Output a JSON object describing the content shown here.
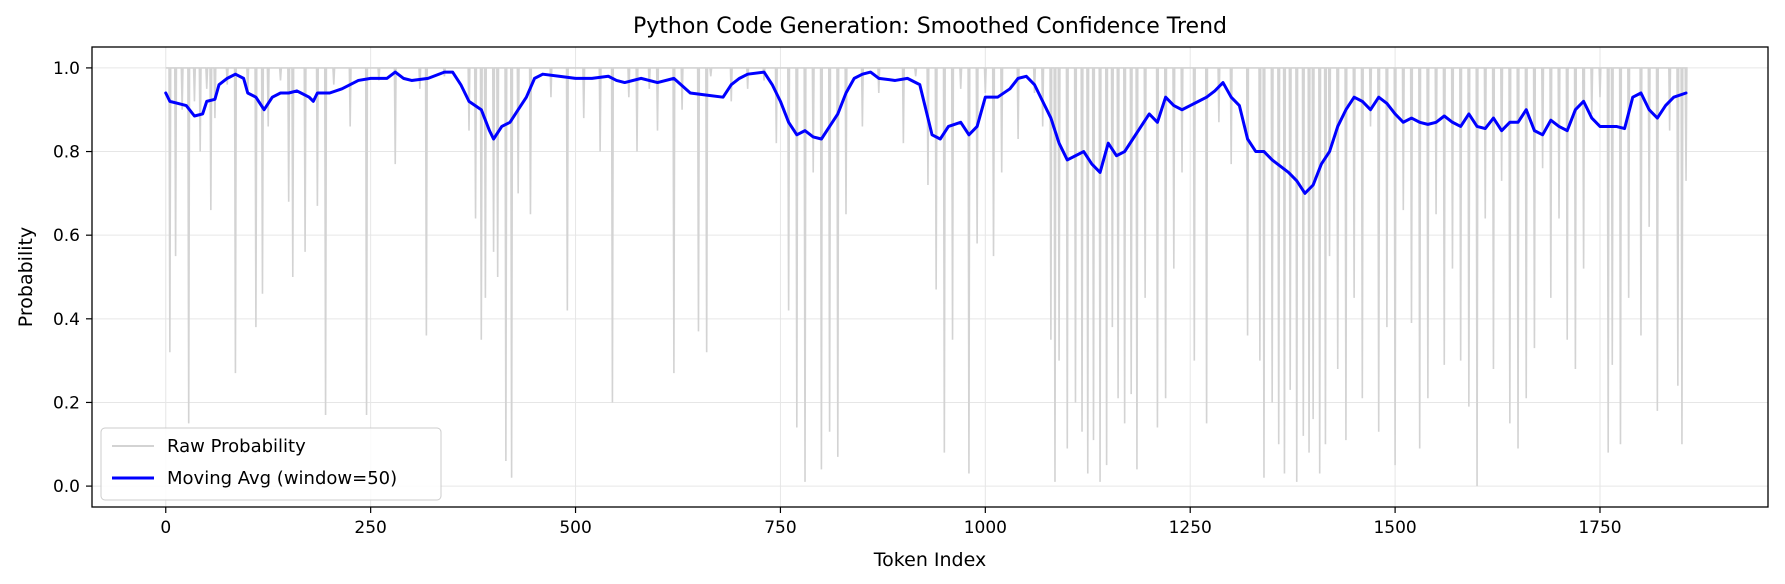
{
  "chart_data": {
    "type": "line",
    "title": "Python Code Generation: Smoothed Confidence Trend",
    "xlabel": "Token Index",
    "ylabel": "Probability",
    "xlim": [
      -90,
      1955
    ],
    "ylim": [
      -0.05,
      1.05
    ],
    "x_ticks": [
      0,
      250,
      500,
      750,
      1000,
      1250,
      1500,
      1750
    ],
    "y_ticks": [
      0.0,
      0.2,
      0.4,
      0.6,
      0.8,
      1.0
    ],
    "x_tick_labels": [
      "0",
      "250",
      "500",
      "750",
      "1000",
      "1250",
      "1500",
      "1750"
    ],
    "y_tick_labels": [
      "0.0",
      "0.2",
      "0.4",
      "0.6",
      "0.8",
      "1.0"
    ],
    "grid": true,
    "legend_position": "lower-left",
    "colors": {
      "raw": "#d3d3d3",
      "smoothed": "#0000ff"
    },
    "raw_probability": {
      "name": "Raw Probability",
      "baseline": 1.0,
      "x_range": [
        0,
        1855
      ],
      "dips": [
        [
          5,
          0.32
        ],
        [
          12,
          0.55
        ],
        [
          20,
          0.9
        ],
        [
          28,
          0.15
        ],
        [
          35,
          0.92
        ],
        [
          42,
          0.8
        ],
        [
          50,
          0.95
        ],
        [
          55,
          0.66
        ],
        [
          60,
          0.88
        ],
        [
          75,
          0.96
        ],
        [
          85,
          0.27
        ],
        [
          100,
          0.94
        ],
        [
          110,
          0.38
        ],
        [
          118,
          0.46
        ],
        [
          125,
          0.86
        ],
        [
          140,
          0.97
        ],
        [
          150,
          0.68
        ],
        [
          155,
          0.5
        ],
        [
          170,
          0.56
        ],
        [
          185,
          0.67
        ],
        [
          195,
          0.17
        ],
        [
          205,
          0.96
        ],
        [
          225,
          0.86
        ],
        [
          245,
          0.17
        ],
        [
          260,
          0.97
        ],
        [
          280,
          0.77
        ],
        [
          310,
          0.95
        ],
        [
          318,
          0.36
        ],
        [
          340,
          0.98
        ],
        [
          370,
          0.85
        ],
        [
          378,
          0.64
        ],
        [
          385,
          0.35
        ],
        [
          390,
          0.45
        ],
        [
          400,
          0.56
        ],
        [
          405,
          0.5
        ],
        [
          415,
          0.06
        ],
        [
          422,
          0.02
        ],
        [
          430,
          0.7
        ],
        [
          445,
          0.65
        ],
        [
          470,
          0.93
        ],
        [
          490,
          0.42
        ],
        [
          510,
          0.88
        ],
        [
          530,
          0.8
        ],
        [
          545,
          0.2
        ],
        [
          565,
          0.93
        ],
        [
          575,
          0.8
        ],
        [
          590,
          0.95
        ],
        [
          600,
          0.85
        ],
        [
          620,
          0.27
        ],
        [
          630,
          0.9
        ],
        [
          650,
          0.37
        ],
        [
          660,
          0.32
        ],
        [
          665,
          0.98
        ],
        [
          690,
          0.92
        ],
        [
          710,
          0.95
        ],
        [
          730,
          0.97
        ],
        [
          745,
          0.82
        ],
        [
          760,
          0.42
        ],
        [
          770,
          0.14
        ],
        [
          780,
          0.01
        ],
        [
          790,
          0.75
        ],
        [
          800,
          0.04
        ],
        [
          810,
          0.13
        ],
        [
          820,
          0.07
        ],
        [
          830,
          0.65
        ],
        [
          850,
          0.86
        ],
        [
          870,
          0.94
        ],
        [
          900,
          0.82
        ],
        [
          915,
          0.98
        ],
        [
          930,
          0.72
        ],
        [
          940,
          0.47
        ],
        [
          950,
          0.08
        ],
        [
          960,
          0.35
        ],
        [
          970,
          0.95
        ],
        [
          980,
          0.03
        ],
        [
          990,
          0.58
        ],
        [
          1000,
          0.94
        ],
        [
          1010,
          0.55
        ],
        [
          1020,
          0.75
        ],
        [
          1040,
          0.83
        ],
        [
          1060,
          0.94
        ],
        [
          1070,
          0.86
        ],
        [
          1080,
          0.35
        ],
        [
          1085,
          0.01
        ],
        [
          1090,
          0.3
        ],
        [
          1100,
          0.09
        ],
        [
          1110,
          0.2
        ],
        [
          1118,
          0.13
        ],
        [
          1125,
          0.03
        ],
        [
          1132,
          0.11
        ],
        [
          1140,
          0.01
        ],
        [
          1148,
          0.05
        ],
        [
          1155,
          0.38
        ],
        [
          1162,
          0.21
        ],
        [
          1170,
          0.15
        ],
        [
          1178,
          0.22
        ],
        [
          1185,
          0.04
        ],
        [
          1195,
          0.45
        ],
        [
          1210,
          0.14
        ],
        [
          1220,
          0.21
        ],
        [
          1230,
          0.52
        ],
        [
          1240,
          0.75
        ],
        [
          1255,
          0.3
        ],
        [
          1270,
          0.15
        ],
        [
          1285,
          0.87
        ],
        [
          1300,
          0.77
        ],
        [
          1320,
          0.36
        ],
        [
          1335,
          0.3
        ],
        [
          1340,
          0.02
        ],
        [
          1350,
          0.2
        ],
        [
          1358,
          0.1
        ],
        [
          1365,
          0.03
        ],
        [
          1372,
          0.23
        ],
        [
          1380,
          0.01
        ],
        [
          1388,
          0.12
        ],
        [
          1395,
          0.08
        ],
        [
          1400,
          0.16
        ],
        [
          1408,
          0.03
        ],
        [
          1415,
          0.1
        ],
        [
          1420,
          0.55
        ],
        [
          1430,
          0.28
        ],
        [
          1440,
          0.11
        ],
        [
          1450,
          0.45
        ],
        [
          1460,
          0.21
        ],
        [
          1470,
          0.86
        ],
        [
          1480,
          0.13
        ],
        [
          1490,
          0.38
        ],
        [
          1500,
          0.05
        ],
        [
          1510,
          0.66
        ],
        [
          1520,
          0.39
        ],
        [
          1530,
          0.09
        ],
        [
          1540,
          0.21
        ],
        [
          1550,
          0.65
        ],
        [
          1560,
          0.29
        ],
        [
          1570,
          0.52
        ],
        [
          1580,
          0.3
        ],
        [
          1590,
          0.19
        ],
        [
          1600,
          0.0
        ],
        [
          1610,
          0.64
        ],
        [
          1620,
          0.28
        ],
        [
          1630,
          0.73
        ],
        [
          1640,
          0.15
        ],
        [
          1650,
          0.09
        ],
        [
          1660,
          0.21
        ],
        [
          1670,
          0.33
        ],
        [
          1680,
          0.76
        ],
        [
          1690,
          0.45
        ],
        [
          1700,
          0.64
        ],
        [
          1710,
          0.35
        ],
        [
          1720,
          0.28
        ],
        [
          1730,
          0.52
        ],
        [
          1740,
          0.89
        ],
        [
          1750,
          0.93
        ],
        [
          1760,
          0.08
        ],
        [
          1765,
          0.29
        ],
        [
          1775,
          0.1
        ],
        [
          1785,
          0.45
        ],
        [
          1800,
          0.36
        ],
        [
          1810,
          0.62
        ],
        [
          1820,
          0.18
        ],
        [
          1835,
          0.85
        ],
        [
          1845,
          0.24
        ],
        [
          1850,
          0.1
        ],
        [
          1855,
          0.73
        ]
      ]
    },
    "moving_average": {
      "name": "Moving Avg (window=50)",
      "points": [
        [
          0,
          0.94
        ],
        [
          5,
          0.92
        ],
        [
          15,
          0.915
        ],
        [
          25,
          0.91
        ],
        [
          35,
          0.885
        ],
        [
          45,
          0.89
        ],
        [
          50,
          0.92
        ],
        [
          60,
          0.925
        ],
        [
          65,
          0.96
        ],
        [
          75,
          0.975
        ],
        [
          85,
          0.985
        ],
        [
          95,
          0.975
        ],
        [
          100,
          0.94
        ],
        [
          110,
          0.93
        ],
        [
          120,
          0.9
        ],
        [
          130,
          0.93
        ],
        [
          140,
          0.94
        ],
        [
          150,
          0.94
        ],
        [
          160,
          0.945
        ],
        [
          165,
          0.94
        ],
        [
          175,
          0.93
        ],
        [
          180,
          0.92
        ],
        [
          185,
          0.94
        ],
        [
          200,
          0.94
        ],
        [
          215,
          0.95
        ],
        [
          235,
          0.97
        ],
        [
          250,
          0.975
        ],
        [
          270,
          0.975
        ],
        [
          280,
          0.99
        ],
        [
          290,
          0.975
        ],
        [
          300,
          0.97
        ],
        [
          320,
          0.975
        ],
        [
          340,
          0.99
        ],
        [
          350,
          0.99
        ],
        [
          360,
          0.96
        ],
        [
          370,
          0.92
        ],
        [
          385,
          0.9
        ],
        [
          395,
          0.85
        ],
        [
          400,
          0.83
        ],
        [
          410,
          0.86
        ],
        [
          420,
          0.87
        ],
        [
          430,
          0.9
        ],
        [
          440,
          0.93
        ],
        [
          450,
          0.975
        ],
        [
          460,
          0.985
        ],
        [
          480,
          0.98
        ],
        [
          500,
          0.975
        ],
        [
          520,
          0.975
        ],
        [
          540,
          0.98
        ],
        [
          550,
          0.97
        ],
        [
          560,
          0.965
        ],
        [
          580,
          0.975
        ],
        [
          600,
          0.965
        ],
        [
          620,
          0.975
        ],
        [
          640,
          0.94
        ],
        [
          660,
          0.935
        ],
        [
          680,
          0.93
        ],
        [
          690,
          0.96
        ],
        [
          700,
          0.975
        ],
        [
          710,
          0.985
        ],
        [
          730,
          0.99
        ],
        [
          740,
          0.96
        ],
        [
          750,
          0.92
        ],
        [
          760,
          0.87
        ],
        [
          770,
          0.84
        ],
        [
          780,
          0.85
        ],
        [
          790,
          0.835
        ],
        [
          800,
          0.83
        ],
        [
          810,
          0.86
        ],
        [
          820,
          0.89
        ],
        [
          830,
          0.94
        ],
        [
          840,
          0.975
        ],
        [
          850,
          0.985
        ],
        [
          860,
          0.99
        ],
        [
          870,
          0.975
        ],
        [
          890,
          0.97
        ],
        [
          905,
          0.975
        ],
        [
          920,
          0.96
        ],
        [
          935,
          0.84
        ],
        [
          945,
          0.83
        ],
        [
          955,
          0.86
        ],
        [
          970,
          0.87
        ],
        [
          980,
          0.84
        ],
        [
          990,
          0.86
        ],
        [
          1000,
          0.93
        ],
        [
          1015,
          0.93
        ],
        [
          1030,
          0.95
        ],
        [
          1040,
          0.975
        ],
        [
          1050,
          0.98
        ],
        [
          1060,
          0.96
        ],
        [
          1070,
          0.92
        ],
        [
          1080,
          0.88
        ],
        [
          1090,
          0.82
        ],
        [
          1100,
          0.78
        ],
        [
          1110,
          0.79
        ],
        [
          1120,
          0.8
        ],
        [
          1130,
          0.77
        ],
        [
          1140,
          0.75
        ],
        [
          1150,
          0.82
        ],
        [
          1160,
          0.79
        ],
        [
          1170,
          0.8
        ],
        [
          1180,
          0.83
        ],
        [
          1190,
          0.86
        ],
        [
          1200,
          0.89
        ],
        [
          1210,
          0.87
        ],
        [
          1220,
          0.93
        ],
        [
          1230,
          0.91
        ],
        [
          1240,
          0.9
        ],
        [
          1250,
          0.91
        ],
        [
          1260,
          0.92
        ],
        [
          1270,
          0.93
        ],
        [
          1280,
          0.945
        ],
        [
          1290,
          0.965
        ],
        [
          1300,
          0.93
        ],
        [
          1310,
          0.91
        ],
        [
          1320,
          0.83
        ],
        [
          1330,
          0.8
        ],
        [
          1340,
          0.8
        ],
        [
          1350,
          0.78
        ],
        [
          1360,
          0.765
        ],
        [
          1370,
          0.75
        ],
        [
          1380,
          0.73
        ],
        [
          1390,
          0.7
        ],
        [
          1400,
          0.72
        ],
        [
          1410,
          0.77
        ],
        [
          1420,
          0.8
        ],
        [
          1430,
          0.86
        ],
        [
          1440,
          0.9
        ],
        [
          1450,
          0.93
        ],
        [
          1460,
          0.92
        ],
        [
          1470,
          0.9
        ],
        [
          1480,
          0.93
        ],
        [
          1490,
          0.915
        ],
        [
          1500,
          0.89
        ],
        [
          1510,
          0.87
        ],
        [
          1520,
          0.88
        ],
        [
          1530,
          0.87
        ],
        [
          1540,
          0.865
        ],
        [
          1550,
          0.87
        ],
        [
          1560,
          0.885
        ],
        [
          1570,
          0.87
        ],
        [
          1580,
          0.86
        ],
        [
          1590,
          0.89
        ],
        [
          1600,
          0.86
        ],
        [
          1610,
          0.855
        ],
        [
          1620,
          0.88
        ],
        [
          1630,
          0.85
        ],
        [
          1640,
          0.87
        ],
        [
          1650,
          0.87
        ],
        [
          1660,
          0.9
        ],
        [
          1670,
          0.85
        ],
        [
          1680,
          0.84
        ],
        [
          1690,
          0.875
        ],
        [
          1700,
          0.86
        ],
        [
          1710,
          0.85
        ],
        [
          1720,
          0.9
        ],
        [
          1730,
          0.92
        ],
        [
          1740,
          0.88
        ],
        [
          1750,
          0.86
        ],
        [
          1760,
          0.86
        ],
        [
          1770,
          0.86
        ],
        [
          1780,
          0.855
        ],
        [
          1790,
          0.93
        ],
        [
          1800,
          0.94
        ],
        [
          1810,
          0.9
        ],
        [
          1820,
          0.88
        ],
        [
          1830,
          0.91
        ],
        [
          1840,
          0.93
        ],
        [
          1855,
          0.94
        ]
      ]
    }
  }
}
